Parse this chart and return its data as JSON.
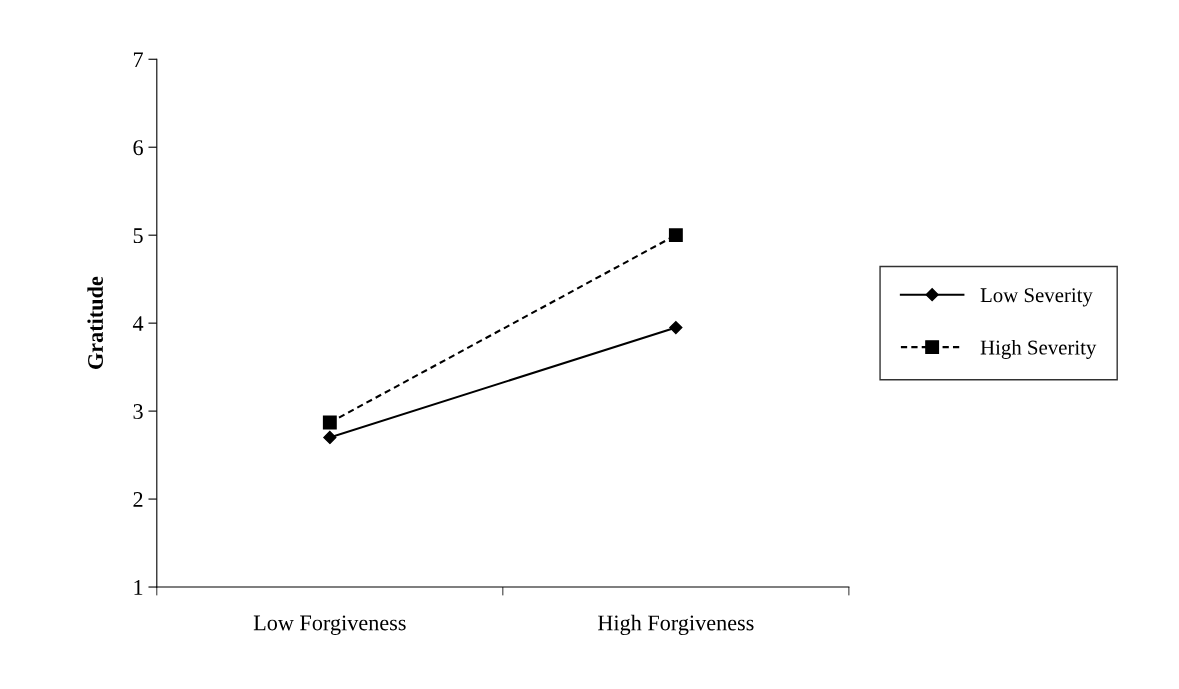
{
  "chart_data": {
    "type": "line",
    "ylabel": "Gratitude",
    "categories": [
      "Low Forgiveness",
      "High Forgiveness"
    ],
    "series": [
      {
        "name": "Low Severity",
        "color": "#000000",
        "values": [
          2.7,
          3.95
        ],
        "marker": "diamond",
        "line_style": "solid"
      },
      {
        "name": "High Severity",
        "color": "#000000",
        "values": [
          2.87,
          5.0
        ],
        "marker": "square",
        "line_style": "dashed"
      }
    ],
    "ylim": [
      1,
      7
    ],
    "yticks": [
      1,
      2,
      3,
      4,
      5,
      6,
      7
    ],
    "grid": false,
    "legend": "right"
  }
}
